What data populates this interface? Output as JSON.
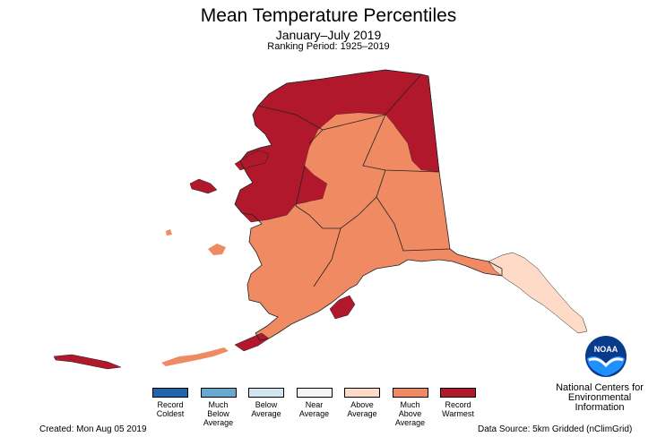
{
  "title": "Mean Temperature Percentiles",
  "subtitle": "January–July 2019",
  "ranking_period": "Ranking Period: 1925–2019",
  "legend": [
    {
      "label": "Record\nColdest",
      "color": "#2166ac"
    },
    {
      "label": "Much\nBelow\nAverage",
      "color": "#67a9cf"
    },
    {
      "label": "Below\nAverage",
      "color": "#d1e5f0"
    },
    {
      "label": "Near\nAverage",
      "color": "#f7f7f7"
    },
    {
      "label": "Above\nAverage",
      "color": "#fddbc7"
    },
    {
      "label": "Much\nAbove\nAverage",
      "color": "#ef8a62"
    },
    {
      "label": "Record\nWarmest",
      "color": "#b2182b"
    }
  ],
  "map_colors": {
    "record_warmest": "#b2182b",
    "much_above": "#ef8a62",
    "above": "#fddbc7",
    "border": "#222222"
  },
  "organization": "National Centers for\nEnvironmental\nInformation",
  "logo_text": "NOAA",
  "created": "Created: Mon Aug 05 2019",
  "data_source": "Data Source: 5km Gridded (nClimGrid)"
}
